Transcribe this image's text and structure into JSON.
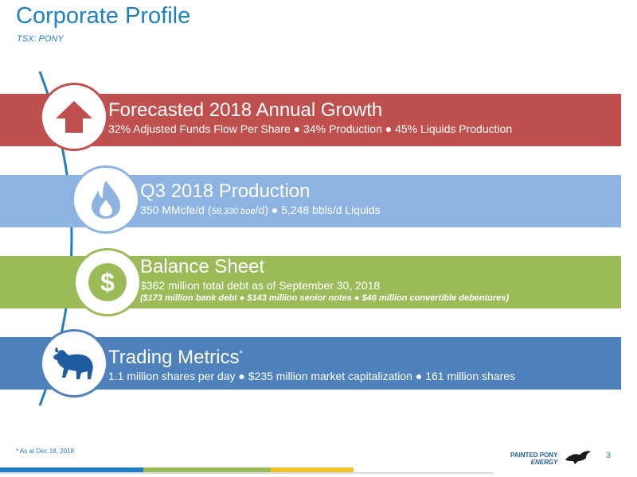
{
  "header": {
    "title": "Corporate Profile",
    "subtitle": "TSX: PONY"
  },
  "bands": [
    {
      "title": "Forecasted 2018 Annual Growth",
      "line": "32% Adjusted Funds Flow Per Share ● 34% Production ● 45% Liquids Production",
      "icon": "up-arrow-icon",
      "color": "#c0504d"
    },
    {
      "title": "Q3 2018 Production",
      "line_a": "350 MMcfe/d (",
      "line_b": "58,330 boe",
      "line_c": "/d) ● 5,248 bbls/d Liquids",
      "icon": "flame-icon",
      "color": "#8db3e2"
    },
    {
      "title": "Balance Sheet",
      "line": "$362 million total debt as of September 30, 2018",
      "line2": "($173 million bank debt ● $143 million senior notes ● $46 million convertible debentures)",
      "icon": "dollar-icon",
      "color": "#9bbb59"
    },
    {
      "title": "Trading Metrics",
      "title_sup": "*",
      "line": "1.1 million shares per day ● $235 million market capitalization ● 161 million shares",
      "icon": "bull-icon",
      "color": "#4f81bd"
    }
  ],
  "footer": {
    "footnote": "* As at Dec 18, 2018",
    "page_number": "3",
    "logo_line1": "PAINTED PONY",
    "logo_line2": "ENERGY"
  }
}
